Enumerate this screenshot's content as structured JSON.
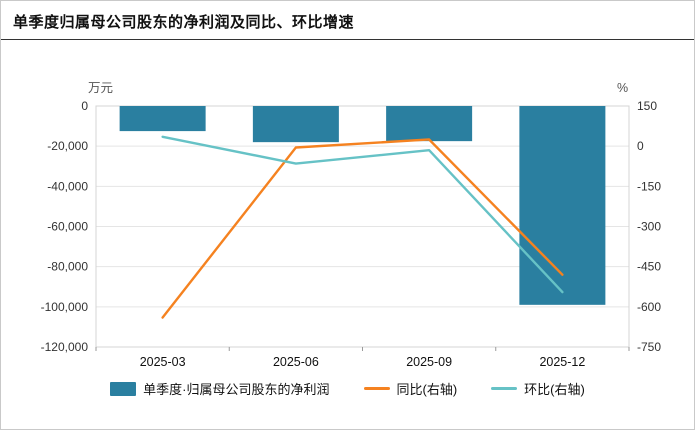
{
  "header": {
    "title": "单季度归属母公司股东的净利润及同比、环比增速"
  },
  "chart_data": {
    "type": "bar",
    "subtype": "bar+line combo, dual y-axis",
    "title": "单季度归属母公司股东的净利润及同比、环比增速",
    "categories": [
      "2025-03",
      "2025-06",
      "2025-09",
      "2025-12"
    ],
    "series": [
      {
        "name": "单季度·归属母公司股东的净利润",
        "type": "bar",
        "axis": "left",
        "color": "#2a7fa0",
        "values": [
          -12500,
          -18000,
          -17500,
          -99000
        ]
      },
      {
        "name": "同比(右轴)",
        "type": "line",
        "axis": "right",
        "color": "#f58220",
        "values": [
          -640,
          -5,
          25,
          -480
        ]
      },
      {
        "name": "环比(右轴)",
        "type": "line",
        "axis": "right",
        "color": "#66c2c6",
        "values": [
          35,
          -65,
          -15,
          -545
        ]
      }
    ],
    "left_axis": {
      "unit": "万元",
      "max": 0,
      "min": -120000,
      "ticks": [
        0,
        -20000,
        -40000,
        -60000,
        -80000,
        -100000,
        -120000
      ],
      "tick_labels": [
        "0",
        "-20,000",
        "-40,000",
        "-60,000",
        "-80,000",
        "-100,000",
        "-120,000"
      ]
    },
    "right_axis": {
      "unit": "%",
      "max": 150,
      "min": -750,
      "ticks": [
        150,
        0,
        -150,
        -300,
        -450,
        -600,
        -750
      ],
      "tick_labels": [
        "150",
        "0",
        "-150",
        "-300",
        "-450",
        "-600",
        "-750"
      ]
    },
    "grid": true,
    "legend_position": "bottom"
  },
  "legend": {
    "items": [
      {
        "label": "单季度·归属母公司股东的净利润",
        "type": "bar",
        "color": "#2a7fa0"
      },
      {
        "label": "同比(右轴)",
        "type": "line",
        "color": "#f58220"
      },
      {
        "label": "环比(右轴)",
        "type": "line",
        "color": "#66c2c6"
      }
    ]
  }
}
